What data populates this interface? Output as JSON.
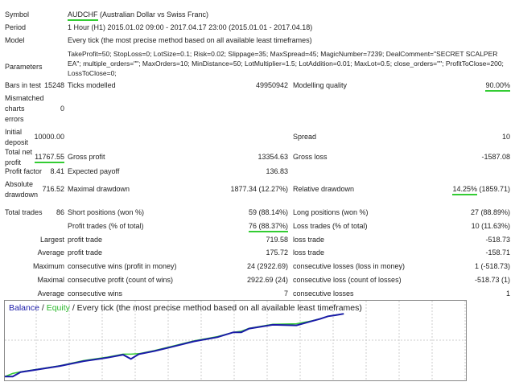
{
  "rows": {
    "symbol": {
      "label": "Symbol",
      "value": "AUDCHF",
      "value_rest": " (Australian Dollar vs Swiss Franc)"
    },
    "period": {
      "label": "Period",
      "value": "1 Hour (H1) 2015.01.02 09:00 - 2017.04.17 23:00 (2015.01.01 - 2017.04.18)"
    },
    "model": {
      "label": "Model",
      "value": "Every tick (the most precise method based on all available least timeframes)"
    },
    "parameters": {
      "label": "Parameters",
      "lines": [
        "TakeProfit=50; StopLoss=0; LotSize=0.1; Risk=0.02; Slippage=35; MaxSpread=45; MagicNumber=7239; DealComment=\"SECRET SCALPER EA\";",
        "multiple_orders=\"\"; MaxOrders=10; MinDistance=50; LotMultiplier=1.5; LotAddition=0.01; MaxLot=0.5; close_orders=\"\"; ProfitToClose=200;",
        "LossToClose=0;"
      ]
    },
    "bars": {
      "label": "Bars in test",
      "value": "15248",
      "label2": "Ticks modelled",
      "value2": "49950942",
      "label3": "Modelling quality",
      "value3": "90.00%"
    },
    "mismatched": {
      "label_lines": [
        "Mismatched",
        "charts",
        "errors"
      ],
      "value": "0"
    },
    "deposit": {
      "label_lines": [
        "Initial",
        "deposit"
      ],
      "value": "10000.00",
      "label3": "Spread",
      "value3": "10"
    },
    "netprofit": {
      "label_lines": [
        "Total net",
        "profit"
      ],
      "value": "11767.55",
      "label2": "Gross profit",
      "value2": "13354.63",
      "label3": "Gross loss",
      "value3": "-1587.08"
    },
    "profitfactor": {
      "label": "Profit factor",
      "value": "8.41",
      "label2": "Expected payoff",
      "value2": "136.83"
    },
    "drawdown": {
      "label_lines": [
        "Absolute",
        "drawdown"
      ],
      "value": "716.52",
      "label2": "Maximal drawdown",
      "value2": "1877.34 (12.27%)",
      "label3": "Relative drawdown",
      "value3a": "14.25%",
      "value3b": " (1859.71)"
    },
    "totaltrades": {
      "label": "Total trades",
      "value": "86",
      "label2": "Short positions (won %)",
      "value2": "59 (88.14%)",
      "label3": "Long positions (won %)",
      "value3": "27 (88.89%)"
    },
    "profittrades": {
      "label2": "Profit trades (% of total)",
      "value2": "76 (88.37%)",
      "label3": "Loss trades (% of total)",
      "value3": "10 (11.63%)"
    },
    "largest": {
      "label": "Largest",
      "label2": "profit trade",
      "value2": "719.58",
      "label3": "loss trade",
      "value3": "-518.73"
    },
    "average": {
      "label": "Average",
      "label2": "profit trade",
      "value2": "175.72",
      "label3": "loss trade",
      "value3": "-158.71"
    },
    "maximum": {
      "label": "Maximum",
      "label2": "consecutive wins (profit in money)",
      "value2": "24 (2922.69)",
      "label3": "consecutive losses (loss in money)",
      "value3": "1 (-518.73)"
    },
    "maximal": {
      "label": "Maximal",
      "label2": "consecutive profit (count of wins)",
      "value2": "2922.69 (24)",
      "label3": "consecutive loss (count of losses)",
      "value3": "-518.73 (1)"
    },
    "avgcons": {
      "label": "Average",
      "label2": "consecutive wins",
      "value2": "7",
      "label3": "consecutive losses",
      "value3": "1"
    }
  },
  "colors": {
    "highlight": "#33cc33",
    "balance": "#1a1aa8",
    "equity": "#33cc33"
  },
  "chart_data": {
    "type": "line",
    "title_balance": "Balance",
    "title_sep": " / ",
    "title_equity": "Equity",
    "title_rest": " / Every tick (the most precise method based on all available least timeframes)",
    "grid": true,
    "xlim": [
      0,
      117
    ],
    "ylim": [
      9300,
      24200
    ],
    "series": [
      {
        "name": "Balance",
        "x": [
          0,
          2,
          4,
          8,
          14,
          20,
          26,
          30,
          32,
          34,
          38,
          42,
          48,
          54,
          58,
          60,
          62,
          68,
          74,
          78,
          80,
          82,
          84,
          86
        ],
        "y": [
          10000,
          10000,
          10850,
          11300,
          12000,
          12900,
          13550,
          14100,
          13300,
          14200,
          14800,
          15500,
          16600,
          17400,
          18300,
          18300,
          19000,
          19700,
          19600,
          20400,
          20800,
          21300,
          21500,
          21767
        ]
      },
      {
        "name": "Equity",
        "x": [
          0,
          2,
          4,
          8,
          14,
          20,
          26,
          30,
          32,
          34,
          38,
          42,
          48,
          54,
          58,
          60,
          62,
          68,
          74,
          78,
          80,
          82,
          84,
          86
        ],
        "y": [
          10000,
          10600,
          10900,
          11350,
          12050,
          13000,
          13650,
          14200,
          14200,
          14300,
          14900,
          15600,
          16700,
          17500,
          18300,
          18500,
          19050,
          19800,
          19900,
          20450,
          20850,
          21300,
          21550,
          21767
        ]
      }
    ]
  }
}
